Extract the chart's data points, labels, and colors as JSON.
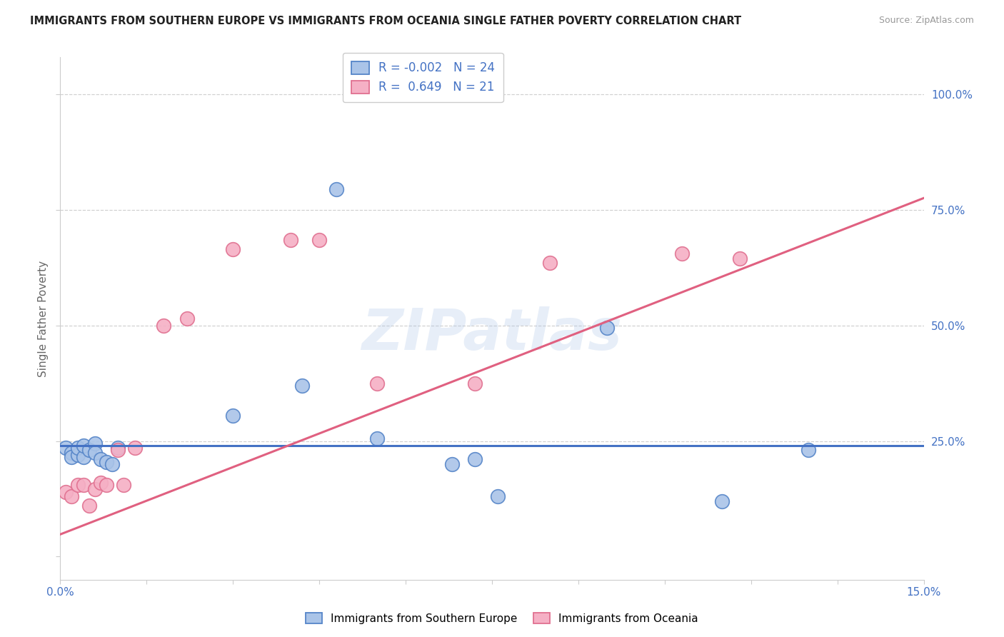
{
  "title": "IMMIGRANTS FROM SOUTHERN EUROPE VS IMMIGRANTS FROM OCEANIA SINGLE FATHER POVERTY CORRELATION CHART",
  "source": "Source: ZipAtlas.com",
  "ylabel": "Single Father Poverty",
  "ytick_labels": [
    "",
    "25.0%",
    "50.0%",
    "75.0%",
    "100.0%"
  ],
  "yticks": [
    0.0,
    0.25,
    0.5,
    0.75,
    1.0
  ],
  "xtick_left": "0.0%",
  "xtick_right": "15.0%",
  "xlim": [
    0.0,
    0.15
  ],
  "ylim": [
    -0.05,
    1.08
  ],
  "legend_line1": "R = -0.002   N = 24",
  "legend_line2": "R =  0.649   N = 21",
  "blue_color": "#aac4e8",
  "pink_color": "#f5b0c5",
  "blue_edge": "#5585c8",
  "pink_edge": "#e07090",
  "blue_line": "#4472c4",
  "pink_line": "#e06080",
  "watermark_text": "ZIPatlas",
  "blue_x": [
    0.001,
    0.002,
    0.002,
    0.003,
    0.003,
    0.004,
    0.004,
    0.005,
    0.006,
    0.006,
    0.007,
    0.008,
    0.009,
    0.01,
    0.03,
    0.042,
    0.048,
    0.055,
    0.068,
    0.072,
    0.076,
    0.095,
    0.115,
    0.13
  ],
  "blue_y": [
    0.235,
    0.225,
    0.215,
    0.22,
    0.235,
    0.215,
    0.24,
    0.23,
    0.245,
    0.225,
    0.21,
    0.205,
    0.2,
    0.235,
    0.305,
    0.37,
    0.795,
    0.255,
    0.2,
    0.21,
    0.13,
    0.495,
    0.12,
    0.23
  ],
  "pink_x": [
    0.001,
    0.002,
    0.003,
    0.004,
    0.005,
    0.006,
    0.007,
    0.008,
    0.01,
    0.011,
    0.013,
    0.018,
    0.022,
    0.03,
    0.04,
    0.045,
    0.055,
    0.072,
    0.085,
    0.108,
    0.118
  ],
  "pink_y": [
    0.14,
    0.13,
    0.155,
    0.155,
    0.11,
    0.145,
    0.16,
    0.155,
    0.23,
    0.155,
    0.235,
    0.5,
    0.515,
    0.665,
    0.685,
    0.685,
    0.375,
    0.375,
    0.635,
    0.655,
    0.645
  ],
  "blue_intercept": 0.24,
  "blue_slope": 0.0,
  "pink_intercept": 0.048,
  "pink_slope": 4.85
}
